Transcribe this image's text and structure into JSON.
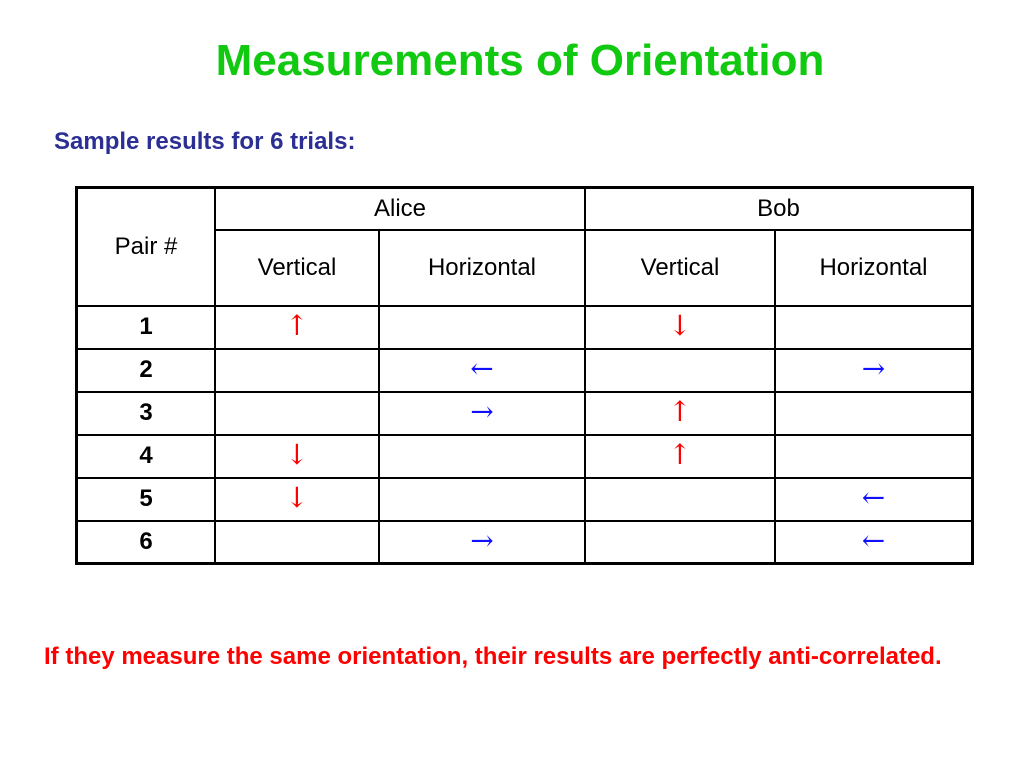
{
  "title": "Measurements of Orientation",
  "subtitle": "Sample results for 6 trials:",
  "table": {
    "pair_header": "Pair #",
    "groups": [
      "Alice",
      "Bob"
    ],
    "subheaders": [
      "Vertical",
      "Horizontal",
      "Vertical",
      "Horizontal"
    ],
    "rows": [
      {
        "pair": "1",
        "cells": [
          "↑",
          "",
          "↓",
          ""
        ]
      },
      {
        "pair": "2",
        "cells": [
          "",
          "←",
          "",
          "→"
        ]
      },
      {
        "pair": "3",
        "cells": [
          "",
          "→",
          "↑",
          ""
        ]
      },
      {
        "pair": "4",
        "cells": [
          "↓",
          "",
          "↑",
          ""
        ]
      },
      {
        "pair": "5",
        "cells": [
          "↓",
          "",
          "",
          "←"
        ]
      },
      {
        "pair": "6",
        "cells": [
          "",
          "→",
          "",
          "←"
        ]
      }
    ]
  },
  "note": "If they measure the same orientation, their results are perfectly anti-correlated.",
  "colors": {
    "title": "#12c912",
    "subtitle": "#2b2f93",
    "vertical_arrow": "#ff0000",
    "horizontal_arrow": "#1010ff",
    "note": "#ff0000"
  }
}
